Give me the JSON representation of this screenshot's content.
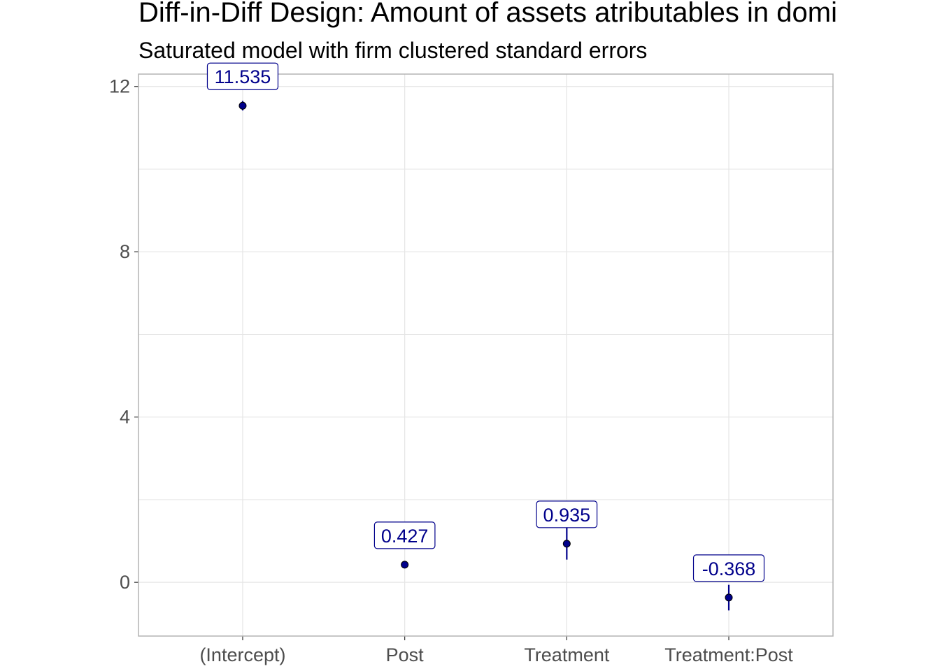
{
  "chart_data": {
    "type": "scatter",
    "title": "Diff-in-Diff Design: Amount of assets atributables in domi",
    "subtitle": "Saturated model with firm clustered standard errors",
    "xlabel": "",
    "ylabel": "",
    "categories": [
      "(Intercept)",
      "Post",
      "Treatment",
      "Treatment:Post"
    ],
    "series": [
      {
        "estimates": [
          11.535,
          0.427,
          0.935,
          -0.368
        ],
        "labels": [
          "11.535",
          "0.427",
          "0.935",
          "-0.368"
        ],
        "ci_low": [
          11.42,
          0.35,
          0.55,
          -0.68
        ],
        "ci_high": [
          11.65,
          0.5,
          1.32,
          -0.06
        ]
      }
    ],
    "ylim": [
      -1.3,
      12.3
    ],
    "yticks": [
      0,
      4,
      8,
      12
    ],
    "ytick_labels": [
      "0",
      "4",
      "8",
      "12"
    ],
    "grid": true,
    "colors": {
      "point": "#00008b",
      "label_text": "#00008b",
      "label_border": "#00008b",
      "grid": "#e5e5e5",
      "panel_border": "#b3b3b3"
    }
  }
}
